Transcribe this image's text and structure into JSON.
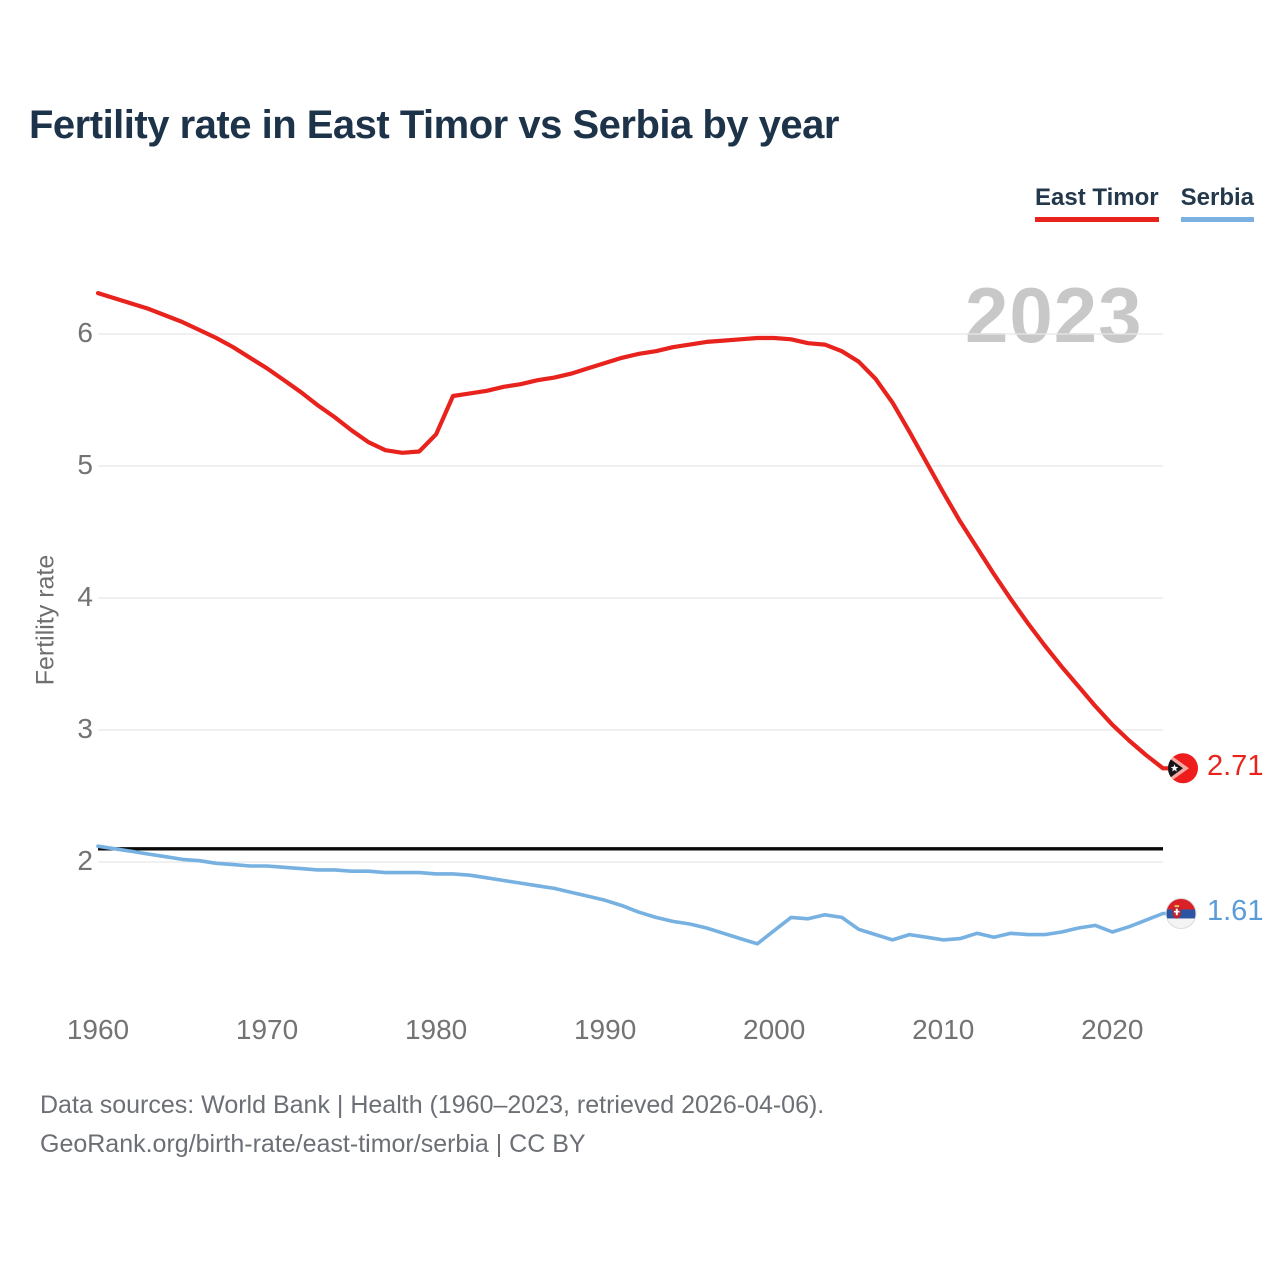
{
  "title": "Fertility rate in East Timor vs Serbia by year",
  "watermark": "2023",
  "legend": {
    "items": [
      {
        "label": "East Timor",
        "color": "#e8231e"
      },
      {
        "label": "Serbia",
        "color": "#76b1e1"
      }
    ]
  },
  "y_axis": {
    "label": "Fertility rate",
    "ticks": [
      2,
      3,
      4,
      5,
      6
    ]
  },
  "x_axis": {
    "ticks": [
      1960,
      1970,
      1980,
      1990,
      2000,
      2010,
      2020
    ]
  },
  "end_labels": [
    {
      "series": "East Timor",
      "value": "2.71",
      "color": "#e8231e",
      "flag": "east-timor"
    },
    {
      "series": "Serbia",
      "value": "1.61",
      "color": "#5b9bd8",
      "flag": "serbia"
    }
  ],
  "footer": {
    "line1": "Data sources: World Bank | Health (1960–2023, retrieved 2026-04-06).",
    "line2": "GeoRank.org/birth-rate/east-timor/serbia | CC BY"
  },
  "chart_data": {
    "type": "line",
    "title": "Fertility rate in East Timor vs Serbia by year",
    "xlabel": "",
    "ylabel": "Fertility rate",
    "xlim": [
      1960,
      2023
    ],
    "ylim": [
      1.2,
      6.5
    ],
    "grid": "horizontal",
    "legend_position": "top-right",
    "annotations": {
      "year_watermark": "2023",
      "replacement_rate_line": 2.1
    },
    "x": [
      1960,
      1961,
      1962,
      1963,
      1964,
      1965,
      1966,
      1967,
      1968,
      1969,
      1970,
      1971,
      1972,
      1973,
      1974,
      1975,
      1976,
      1977,
      1978,
      1979,
      1980,
      1981,
      1982,
      1983,
      1984,
      1985,
      1986,
      1987,
      1988,
      1989,
      1990,
      1991,
      1992,
      1993,
      1994,
      1995,
      1996,
      1997,
      1998,
      1999,
      2000,
      2001,
      2002,
      2003,
      2004,
      2005,
      2006,
      2007,
      2008,
      2009,
      2010,
      2011,
      2012,
      2013,
      2014,
      2015,
      2016,
      2017,
      2018,
      2019,
      2020,
      2021,
      2022,
      2023
    ],
    "series": [
      {
        "name": "East Timor",
        "color": "#e8231e",
        "end_value": 2.71,
        "values": [
          6.31,
          6.27,
          6.23,
          6.19,
          6.14,
          6.09,
          6.03,
          5.97,
          5.9,
          5.82,
          5.74,
          5.65,
          5.56,
          5.46,
          5.37,
          5.27,
          5.18,
          5.12,
          5.1,
          5.11,
          5.24,
          5.53,
          5.55,
          5.57,
          5.6,
          5.62,
          5.65,
          5.67,
          5.7,
          5.74,
          5.78,
          5.82,
          5.85,
          5.87,
          5.9,
          5.92,
          5.94,
          5.95,
          5.96,
          5.97,
          5.97,
          5.96,
          5.93,
          5.92,
          5.87,
          5.79,
          5.66,
          5.48,
          5.26,
          5.03,
          4.8,
          4.58,
          4.38,
          4.18,
          3.99,
          3.81,
          3.64,
          3.48,
          3.33,
          3.18,
          3.04,
          2.92,
          2.81,
          2.71
        ]
      },
      {
        "name": "Serbia",
        "color": "#76b1e1",
        "end_value": 1.61,
        "values": [
          2.12,
          2.1,
          2.08,
          2.06,
          2.04,
          2.02,
          2.01,
          1.99,
          1.98,
          1.97,
          1.97,
          1.96,
          1.95,
          1.94,
          1.94,
          1.93,
          1.93,
          1.92,
          1.92,
          1.92,
          1.91,
          1.91,
          1.9,
          1.88,
          1.86,
          1.84,
          1.82,
          1.8,
          1.77,
          1.74,
          1.71,
          1.67,
          1.62,
          1.58,
          1.55,
          1.53,
          1.5,
          1.46,
          1.42,
          1.38,
          1.48,
          1.58,
          1.57,
          1.6,
          1.58,
          1.49,
          1.45,
          1.41,
          1.45,
          1.43,
          1.41,
          1.42,
          1.46,
          1.43,
          1.46,
          1.45,
          1.45,
          1.47,
          1.5,
          1.52,
          1.47,
          1.51,
          1.56,
          1.61
        ]
      }
    ]
  },
  "style": {
    "gridline_color": "#e7e7e7",
    "reference_line_color": "#0a0a0a",
    "tick_color": "#737373",
    "watermark_color": "#c8c8c8"
  }
}
